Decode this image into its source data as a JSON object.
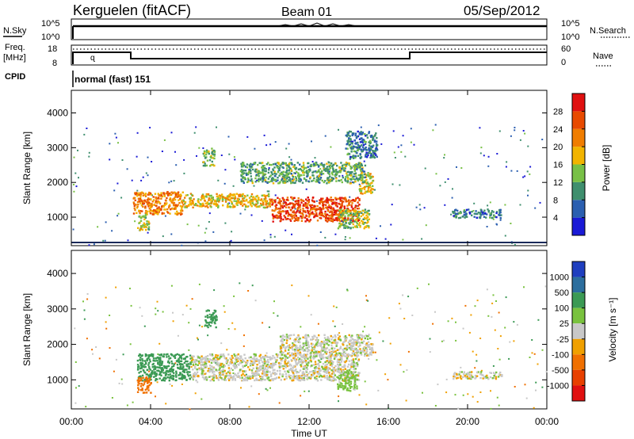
{
  "header": {
    "station": "Kerguelen (fitACF)",
    "beam": "Beam 01",
    "date": "05/Sep/2012"
  },
  "strip": {
    "nsky_label": "N.Sky",
    "nsky_ticks": [
      "10^5",
      "10^0"
    ],
    "nsearch_label": "N.Search",
    "nsearch_ticks": [
      "10^5",
      "10^0"
    ],
    "freq_label": "Freq.",
    "freq_unit": "[MHz]",
    "freq_ticks": [
      "18",
      "8"
    ],
    "nave_label": "Nave",
    "nave_ticks": [
      "60",
      "0"
    ],
    "cpid_label": "CPID",
    "cpid_text": "normal (fast) 151"
  },
  "colors": {
    "power_scale": [
      "#1a1ad6",
      "#2b5fb0",
      "#3f8f6e",
      "#78c046",
      "#f2b400",
      "#f07d00",
      "#e84a00",
      "#e01010"
    ],
    "velocity_scale": [
      "#1f3fbf",
      "#2c6e9e",
      "#3b9a54",
      "#79c23e",
      "#c8c8c8",
      "#f0a000",
      "#f07000",
      "#e84000",
      "#e01010"
    ],
    "ground_scatter": "#bdbdbd"
  },
  "chart_data": [
    {
      "type": "heatmap",
      "name": "power",
      "ylabel": "Slant Range [km]",
      "xlabel": "",
      "x_ticks": [
        "00:00",
        "04:00",
        "08:00",
        "12:00",
        "16:00",
        "20:00",
        "00:00"
      ],
      "y_ticks": [
        "1000",
        "2000",
        "3000",
        "4000"
      ],
      "xlim_hours": [
        0,
        24
      ],
      "ylim_km": [
        180,
        4650
      ],
      "colorbar": {
        "label": "Power [dB]",
        "ticks": [
          "4",
          "8",
          "12",
          "16",
          "20",
          "24",
          "28"
        ],
        "range": [
          0,
          32
        ]
      },
      "scatter_regions": [
        {
          "t_start": 3.1,
          "t_end": 5.6,
          "r_start": 1100,
          "r_end": 1750,
          "value": 22
        },
        {
          "t_start": 5.6,
          "t_end": 10.0,
          "r_start": 1300,
          "r_end": 1700,
          "value": 18
        },
        {
          "t_start": 10.0,
          "t_end": 14.5,
          "r_start": 900,
          "r_end": 1600,
          "value": 26
        },
        {
          "t_start": 14.5,
          "t_end": 15.2,
          "r_start": 1700,
          "r_end": 2300,
          "value": 18
        },
        {
          "t_start": 8.5,
          "t_end": 14.8,
          "r_start": 2000,
          "r_end": 2600,
          "value": 12
        },
        {
          "t_start": 13.8,
          "t_end": 15.4,
          "r_start": 2700,
          "r_end": 3500,
          "value": 8
        },
        {
          "t_start": 6.6,
          "t_end": 7.2,
          "r_start": 2500,
          "r_end": 3000,
          "value": 14
        },
        {
          "t_start": 3.3,
          "t_end": 3.9,
          "r_start": 650,
          "r_end": 1100,
          "value": 16
        },
        {
          "t_start": 19.2,
          "t_end": 21.7,
          "r_start": 1000,
          "r_end": 1250,
          "value": 8
        },
        {
          "t_start": 13.4,
          "t_end": 15.0,
          "r_start": 700,
          "r_end": 1250,
          "value": 14
        }
      ]
    },
    {
      "type": "heatmap",
      "name": "velocity",
      "ylabel": "Slant Range [km]",
      "xlabel": "Time UT",
      "x_ticks": [
        "00:00",
        "04:00",
        "08:00",
        "12:00",
        "16:00",
        "20:00",
        "00:00"
      ],
      "y_ticks": [
        "1000",
        "2000",
        "3000",
        "4000"
      ],
      "xlim_hours": [
        0,
        24
      ],
      "ylim_km": [
        180,
        4650
      ],
      "colorbar": {
        "label": "Velocity [m s⁻¹]",
        "ticks": [
          "1000",
          "500",
          "100",
          "25",
          "-25",
          "-100",
          "-500",
          "-1000"
        ]
      },
      "scatter_regions": [
        {
          "t_start": 3.3,
          "t_end": 6.0,
          "r_start": 1000,
          "r_end": 1750,
          "value": 300
        },
        {
          "t_start": 6.0,
          "t_end": 14.5,
          "r_start": 1000,
          "r_end": 1750,
          "value": 0
        },
        {
          "t_start": 10.5,
          "t_end": 15.2,
          "r_start": 1700,
          "r_end": 2300,
          "value": 0
        },
        {
          "t_start": 13.4,
          "t_end": 14.4,
          "r_start": 700,
          "r_end": 1300,
          "value": 60
        },
        {
          "t_start": 6.7,
          "t_end": 7.3,
          "r_start": 2500,
          "r_end": 3000,
          "value": 400
        },
        {
          "t_start": 3.3,
          "t_end": 4.0,
          "r_start": 650,
          "r_end": 1100,
          "value": -200
        },
        {
          "t_start": 19.2,
          "t_end": 21.7,
          "r_start": 1050,
          "r_end": 1250,
          "value": 0
        }
      ]
    }
  ]
}
